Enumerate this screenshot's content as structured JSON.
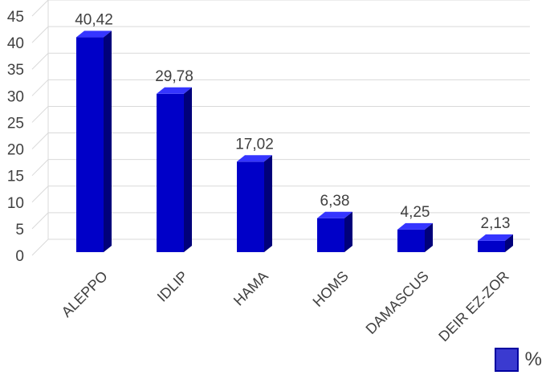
{
  "chart_data": {
    "type": "bar",
    "categories": [
      "ALEPPO",
      "IDLIP",
      "HAMA",
      "HOMS",
      "DAMASCUS",
      "DEIR EZ-ZOR"
    ],
    "series": [
      {
        "name": "%",
        "values": [
          40.42,
          29.78,
          17.02,
          6.38,
          4.25,
          2.13
        ],
        "value_labels": [
          "40,42",
          "29,78",
          "17,02",
          "6,38",
          "4,25",
          "2,13"
        ]
      }
    ],
    "yticks": [
      "0",
      "5",
      "10",
      "15",
      "20",
      "25",
      "30",
      "35",
      "40",
      "45"
    ],
    "ylim": [
      0,
      45
    ],
    "grid": true,
    "bar_style": "3d",
    "legend_position": "bottom-right",
    "colors": {
      "front": "#0000c8",
      "side": "#00007a",
      "top": "#3535ff",
      "grid": "#d9d9d9"
    }
  }
}
